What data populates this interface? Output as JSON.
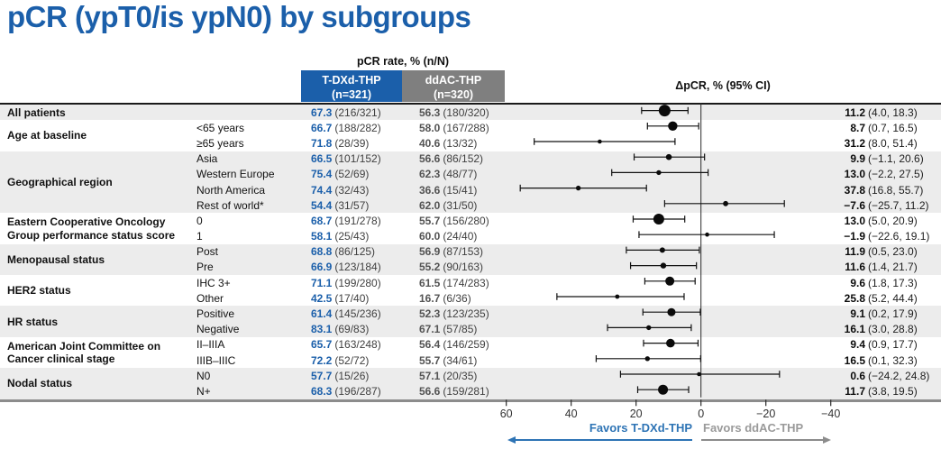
{
  "title": "pCR (ypT0/is ypN0) by subgroups",
  "header": {
    "pcr_rate": "pCR rate, % (n/N)",
    "arm1_name": "T-DXd-THP",
    "arm1_n": "(n=321)",
    "arm2_name": "ddAC-THP",
    "arm2_n": "(n=320)",
    "delta": "ΔpCR, % (95% CI)"
  },
  "footer": {
    "favors_left": "Favors T-DXd-THP",
    "favors_right": "Favors ddAC-THP"
  },
  "colors": {
    "brand_blue": "#1B5FAA",
    "arm2_gray": "#7F7F7F",
    "row_shade": "#ECECEC",
    "favors_left_blue": "#2E74B5",
    "favors_right_gray": "#9A9A9A",
    "marker_black": "#0b0b0b"
  },
  "chart_data": {
    "type": "scatter",
    "variant": "forest",
    "title": "ΔpCR, % (95% CI)",
    "x_axis_reversed": true,
    "xlim": [
      62,
      -42
    ],
    "x_ticks": [
      60,
      40,
      20,
      0,
      -20,
      -40
    ],
    "x_tick_labels": [
      "60",
      "40",
      "20",
      "0",
      "−20",
      "−40"
    ],
    "annotations": [
      "Favors T-DXd-THP",
      "Favors ddAC-THP"
    ],
    "groups": [
      {
        "label": "All patients",
        "shaded": true,
        "rows": [
          {
            "sub": "",
            "arm1_pct": "67.3",
            "arm1_nn": "(216/321)",
            "arm2_pct": "56.3",
            "arm2_nn": "(180/320)",
            "delta": 11.2,
            "ci_lo": 4.0,
            "ci_hi": 18.3,
            "delta_label": "11.2",
            "ci_label": "(4.0, 18.3)",
            "marker": 6.5
          }
        ]
      },
      {
        "label": "Age at baseline",
        "shaded": false,
        "rows": [
          {
            "sub": "<65 years",
            "arm1_pct": "66.7",
            "arm1_nn": "(188/282)",
            "arm2_pct": "58.0",
            "arm2_nn": "(167/288)",
            "delta": 8.7,
            "ci_lo": 0.7,
            "ci_hi": 16.5,
            "delta_label": "8.7",
            "ci_label": "(0.7, 16.5)",
            "marker": 5.2
          },
          {
            "sub": "≥65 years",
            "arm1_pct": "71.8",
            "arm1_nn": "(28/39)",
            "arm2_pct": "40.6",
            "arm2_nn": "(13/32)",
            "delta": 31.2,
            "ci_lo": 8.0,
            "ci_hi": 51.4,
            "delta_label": "31.2",
            "ci_label": "(8.0, 51.4)",
            "marker": 2.3
          }
        ]
      },
      {
        "label": "Geographical region",
        "shaded": true,
        "rows": [
          {
            "sub": "Asia",
            "arm1_pct": "66.5",
            "arm1_nn": "(101/152)",
            "arm2_pct": "56.6",
            "arm2_nn": "(86/152)",
            "delta": 9.9,
            "ci_lo": -1.1,
            "ci_hi": 20.6,
            "delta_label": "9.9",
            "ci_label": "(−1.1, 20.6)",
            "marker": 3.3
          },
          {
            "sub": "Western Europe",
            "arm1_pct": "75.4",
            "arm1_nn": "(52/69)",
            "arm2_pct": "62.3",
            "arm2_nn": "(48/77)",
            "delta": 13.0,
            "ci_lo": -2.2,
            "ci_hi": 27.5,
            "delta_label": "13.0",
            "ci_label": "(−2.2, 27.5)",
            "marker": 2.7
          },
          {
            "sub": "North America",
            "arm1_pct": "74.4",
            "arm1_nn": "(32/43)",
            "arm2_pct": "36.6",
            "arm2_nn": "(15/41)",
            "delta": 37.8,
            "ci_lo": 16.8,
            "ci_hi": 55.7,
            "delta_label": "37.8",
            "ci_label": "(16.8, 55.7)",
            "marker": 2.7
          },
          {
            "sub": "Rest of world*",
            "arm1_pct": "54.4",
            "arm1_nn": "(31/57)",
            "arm2_pct": "62.0",
            "arm2_nn": "(31/50)",
            "delta": -7.6,
            "ci_lo": -25.7,
            "ci_hi": 11.2,
            "delta_label": "−7.6",
            "ci_label": "(−25.7, 11.2)",
            "marker": 2.9
          }
        ]
      },
      {
        "label": "Eastern Cooperative Oncology\nGroup performance status score",
        "shaded": false,
        "rows": [
          {
            "sub": "0",
            "arm1_pct": "68.7",
            "arm1_nn": "(191/278)",
            "arm2_pct": "55.7",
            "arm2_nn": "(156/280)",
            "delta": 13.0,
            "ci_lo": 5.0,
            "ci_hi": 20.9,
            "delta_label": "13.0",
            "ci_label": "(5.0, 20.9)",
            "marker": 6.0
          },
          {
            "sub": "1",
            "arm1_pct": "58.1",
            "arm1_nn": "(25/43)",
            "arm2_pct": "60.0",
            "arm2_nn": "(24/40)",
            "delta": -1.9,
            "ci_lo": -22.6,
            "ci_hi": 19.1,
            "delta_label": "−1.9",
            "ci_label": "(−22.6, 19.1)",
            "marker": 2.3
          }
        ]
      },
      {
        "label": "Menopausal status",
        "shaded": true,
        "rows": [
          {
            "sub": "Post",
            "arm1_pct": "68.8",
            "arm1_nn": "(86/125)",
            "arm2_pct": "56.9",
            "arm2_nn": "(87/153)",
            "delta": 11.9,
            "ci_lo": 0.5,
            "ci_hi": 23.0,
            "delta_label": "11.9",
            "ci_label": "(0.5, 23.0)",
            "marker": 3.0
          },
          {
            "sub": "Pre",
            "arm1_pct": "66.9",
            "arm1_nn": "(123/184)",
            "arm2_pct": "55.2",
            "arm2_nn": "(90/163)",
            "delta": 11.6,
            "ci_lo": 1.4,
            "ci_hi": 21.7,
            "delta_label": "11.6",
            "ci_label": "(1.4, 21.7)",
            "marker": 3.2
          }
        ]
      },
      {
        "label": "HER2 status",
        "shaded": false,
        "rows": [
          {
            "sub": "IHC 3+",
            "arm1_pct": "71.1",
            "arm1_nn": "(199/280)",
            "arm2_pct": "61.5",
            "arm2_nn": "(174/283)",
            "delta": 9.6,
            "ci_lo": 1.8,
            "ci_hi": 17.3,
            "delta_label": "9.6",
            "ci_label": "(1.8, 17.3)",
            "marker": 5.0
          },
          {
            "sub": "Other",
            "arm1_pct": "42.5",
            "arm1_nn": "(17/40)",
            "arm2_pct": "16.7",
            "arm2_nn": "(6/36)",
            "delta": 25.8,
            "ci_lo": 5.2,
            "ci_hi": 44.4,
            "delta_label": "25.8",
            "ci_label": "(5.2, 44.4)",
            "marker": 2.4
          }
        ]
      },
      {
        "label": "HR status",
        "shaded": true,
        "rows": [
          {
            "sub": "Positive",
            "arm1_pct": "61.4",
            "arm1_nn": "(145/236)",
            "arm2_pct": "52.3",
            "arm2_nn": "(123/235)",
            "delta": 9.1,
            "ci_lo": 0.2,
            "ci_hi": 17.9,
            "delta_label": "9.1",
            "ci_label": "(0.2, 17.9)",
            "marker": 4.5
          },
          {
            "sub": "Negative",
            "arm1_pct": "83.1",
            "arm1_nn": "(69/83)",
            "arm2_pct": "67.1",
            "arm2_nn": "(57/85)",
            "delta": 16.1,
            "ci_lo": 3.0,
            "ci_hi": 28.8,
            "delta_label": "16.1",
            "ci_label": "(3.0, 28.8)",
            "marker": 2.7
          }
        ]
      },
      {
        "label": "American Joint Committee on\nCancer clinical stage",
        "shaded": false,
        "rows": [
          {
            "sub": "II–IIIA",
            "arm1_pct": "65.7",
            "arm1_nn": "(163/248)",
            "arm2_pct": "56.4",
            "arm2_nn": "(146/259)",
            "delta": 9.4,
            "ci_lo": 0.9,
            "ci_hi": 17.7,
            "delta_label": "9.4",
            "ci_label": "(0.9, 17.7)",
            "marker": 4.8
          },
          {
            "sub": "IIIB–IIIC",
            "arm1_pct": "72.2",
            "arm1_nn": "(52/72)",
            "arm2_pct": "55.7",
            "arm2_nn": "(34/61)",
            "delta": 16.5,
            "ci_lo": 0.1,
            "ci_hi": 32.3,
            "delta_label": "16.5",
            "ci_label": "(0.1, 32.3)",
            "marker": 2.7
          }
        ]
      },
      {
        "label": "Nodal status",
        "shaded": true,
        "rows": [
          {
            "sub": "N0",
            "arm1_pct": "57.7",
            "arm1_nn": "(15/26)",
            "arm2_pct": "57.1",
            "arm2_nn": "(20/35)",
            "delta": 0.6,
            "ci_lo": -24.2,
            "ci_hi": 24.8,
            "delta_label": "0.6",
            "ci_label": "(−24.2, 24.8)",
            "marker": 2.3
          },
          {
            "sub": "N+",
            "arm1_pct": "68.3",
            "arm1_nn": "(196/287)",
            "arm2_pct": "56.6",
            "arm2_nn": "(159/281)",
            "delta": 11.7,
            "ci_lo": 3.8,
            "ci_hi": 19.5,
            "delta_label": "11.7",
            "ci_label": "(3.8, 19.5)",
            "marker": 5.5
          }
        ]
      }
    ]
  }
}
